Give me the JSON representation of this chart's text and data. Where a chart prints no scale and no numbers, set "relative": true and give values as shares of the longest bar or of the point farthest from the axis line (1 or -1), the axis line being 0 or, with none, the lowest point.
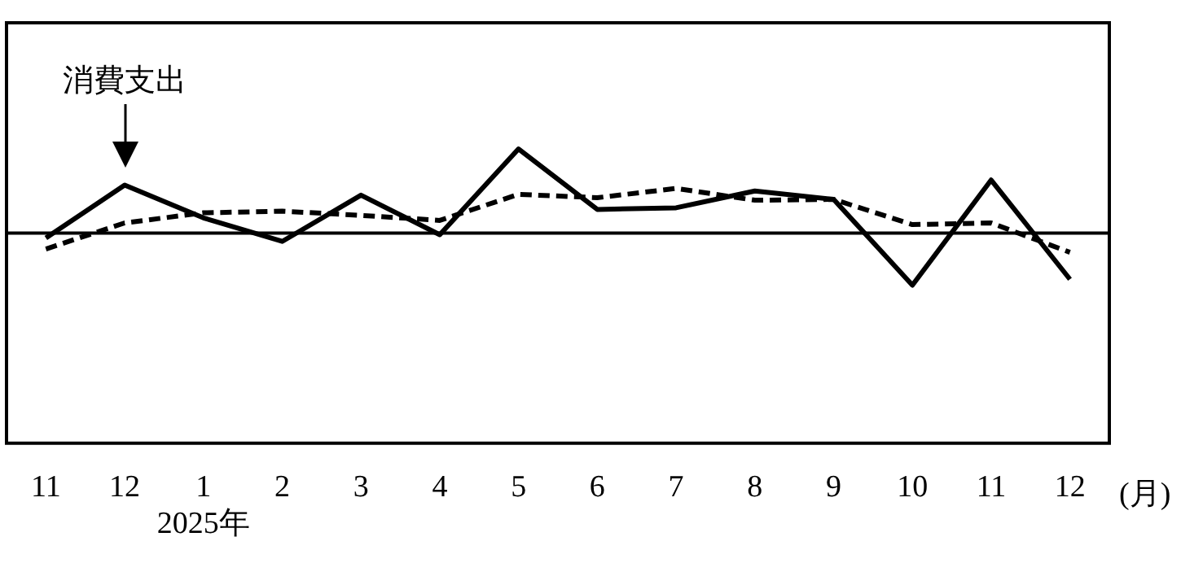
{
  "chart_data": {
    "type": "line",
    "relative": true,
    "categories": [
      "11",
      "12",
      "1\n2025年",
      "2",
      "3",
      "4",
      "5",
      "6",
      "7",
      "8",
      "9",
      "10",
      "11",
      "12"
    ],
    "xlabel": "(月)",
    "legend": false,
    "grid": false,
    "marker": "none",
    "series": [
      {
        "color": "#000000",
        "line_style": "solid",
        "values": [
          -0.06,
          0.57,
          0.18,
          -0.1,
          0.45,
          -0.02,
          1,
          0.28,
          0.3,
          0.5,
          0.4,
          -0.62,
          0.63,
          -0.55
        ]
      },
      {
        "color": "#000000",
        "line_style": "dashed",
        "values": [
          -0.19,
          0.12,
          0.24,
          0.26,
          0.21,
          0.15,
          0.46,
          0.42,
          0.53,
          0.39,
          0.4,
          0.1,
          0.12,
          -0.23
        ]
      }
    ],
    "annotations": [
      {
        "text": "消費支出",
        "x": "12",
        "y": 0.57
      }
    ]
  }
}
